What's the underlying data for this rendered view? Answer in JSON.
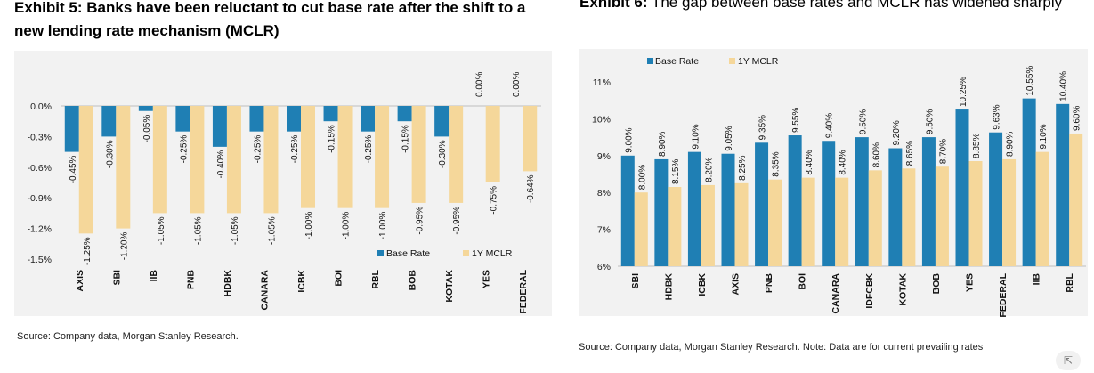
{
  "colors": {
    "base": "#1f7fb4",
    "mclr": "#f5d79a",
    "panel": "#f2f2f2"
  },
  "ui": {
    "expand_icon": "expand-arrows-icon",
    "expand_glyph": "⇱"
  },
  "chart_data": [
    {
      "id": "exhibit5",
      "type": "bar",
      "title_label": "Exhibit 5:",
      "title": "Banks have been reluctant to cut base rate after the shift to a new lending rate mechanism (MCLR)",
      "source": "Source: Company data, Morgan Stanley Research.",
      "categories": [
        "AXIS",
        "SBI",
        "IIB",
        "PNB",
        "HDBK",
        "CANARA",
        "ICBK",
        "BOI",
        "RBL",
        "BOB",
        "KOTAK",
        "YES",
        "FEDERAL"
      ],
      "series": [
        {
          "name": "Base Rate",
          "values": [
            -0.45,
            -0.3,
            -0.05,
            -0.25,
            -0.4,
            -0.25,
            -0.25,
            -0.15,
            -0.25,
            -0.15,
            -0.3,
            0.0,
            0.0
          ],
          "labels": [
            "-0.45%",
            "-0.30%",
            "-0.05%",
            "-0.25%",
            "-0.40%",
            "-0.25%",
            "-0.25%",
            "-0.15%",
            "-0.25%",
            "-0.15%",
            "-0.30%",
            "0.00%",
            "0.00%"
          ]
        },
        {
          "name": "1Y MCLR",
          "values": [
            -1.25,
            -1.2,
            -1.05,
            -1.05,
            -1.05,
            -1.05,
            -1.0,
            -1.0,
            -1.0,
            -0.95,
            -0.95,
            -0.75,
            -0.64
          ],
          "labels": [
            "-1.25%",
            "-1.20%",
            "-1.05%",
            "-1.05%",
            "-1.05%",
            "-1.05%",
            "-1.00%",
            "-1.00%",
            "-1.00%",
            "-0.95%",
            "-0.95%",
            "-0.75%",
            "-0.64%"
          ]
        }
      ],
      "yticks": [
        "0.0%",
        "-0.3%",
        "-0.6%",
        "-0.9%",
        "-1.2%",
        "-1.5%"
      ],
      "ylim": [
        -1.5,
        0
      ],
      "legend": "right, inside plot bottom"
    },
    {
      "id": "exhibit6",
      "type": "bar",
      "title_label": "Exhibit 6:",
      "title": "The gap between base rates and MCLR has widened sharply",
      "source": "Source: Company data, Morgan Stanley Research. Note: Data are for current prevailing rates",
      "categories": [
        "SBI",
        "HDBK",
        "ICBK",
        "AXIS",
        "PNB",
        "BOI",
        "CANARA",
        "IDFCBK",
        "KOTAK",
        "BOB",
        "YES",
        "FEDERAL",
        "IIB",
        "RBL"
      ],
      "series": [
        {
          "name": "Base Rate",
          "values": [
            9.0,
            8.9,
            9.1,
            9.05,
            9.35,
            9.55,
            9.4,
            9.5,
            9.2,
            9.5,
            10.25,
            9.63,
            10.55,
            10.4
          ],
          "labels": [
            "9.00%",
            "8.90%",
            "9.10%",
            "9.05%",
            "9.35%",
            "9.55%",
            "9.40%",
            "9.50%",
            "9.20%",
            "9.50%",
            "10.25%",
            "9.63%",
            "10.55%",
            "10.40%"
          ]
        },
        {
          "name": "1Y MCLR",
          "values": [
            8.0,
            8.15,
            8.2,
            8.25,
            8.35,
            8.4,
            8.4,
            8.6,
            8.65,
            8.7,
            8.85,
            8.9,
            9.1,
            9.6
          ],
          "labels": [
            "8.00%",
            "8.15%",
            "8.20%",
            "8.25%",
            "8.35%",
            "8.40%",
            "8.40%",
            "8.60%",
            "8.65%",
            "8.70%",
            "8.85%",
            "8.90%",
            "9.10%",
            "9.60%"
          ]
        }
      ],
      "yticks": [
        "11%",
        "10%",
        "9%",
        "8%",
        "7%",
        "6%"
      ],
      "ylim": [
        6,
        11
      ],
      "legend": "top-left"
    }
  ]
}
